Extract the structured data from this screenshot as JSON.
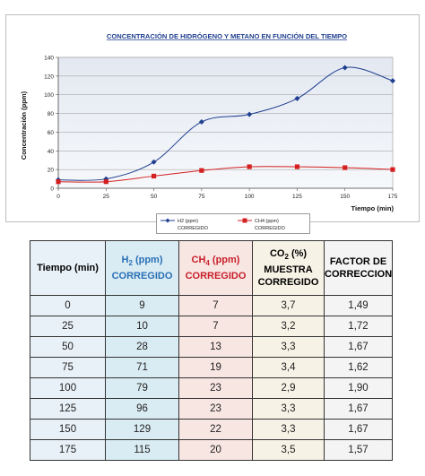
{
  "chart_data": {
    "type": "line",
    "title": "CONCENTRACIÓN DE HIDRÓGENO Y METANO EN FUNCIÓN DEL TIEMPO",
    "xlabel": "Tiempo (min)",
    "ylabel": "Concentración (ppm)",
    "x": [
      0,
      25,
      50,
      75,
      100,
      125,
      150,
      175
    ],
    "xlim": [
      0,
      175
    ],
    "ylim": [
      0,
      140
    ],
    "xticks": [
      "0",
      "25",
      "50",
      "75",
      "100",
      "125",
      "150",
      "175"
    ],
    "yticks": [
      "0",
      "20",
      "40",
      "60",
      "80",
      "100",
      "120",
      "140"
    ],
    "grid": true,
    "series": [
      {
        "name_line1": "H2 (ppm)",
        "name_line2": "CORREGIDO",
        "color": "#1f3f8f",
        "marker": "diamond",
        "values": [
          9,
          10,
          28,
          71,
          79,
          96,
          129,
          115
        ]
      },
      {
        "name_line1": "CH4 (ppm)",
        "name_line2": "CORREGIDO",
        "color": "#d42020",
        "marker": "square",
        "values": [
          7,
          7,
          13,
          19,
          23,
          23,
          22,
          20
        ]
      }
    ]
  },
  "table": {
    "headers": {
      "tiempo": "Tiempo (min)",
      "h2_sym": "H",
      "h2_sub": "2",
      "h2_unit": " (ppm)",
      "h2_corr": "CORREGIDO",
      "ch4_sym": "CH",
      "ch4_sub": "4",
      "ch4_unit": " (ppm)",
      "ch4_corr": "CORREGIDO",
      "co2_sym": "CO",
      "co2_sub": "2",
      "co2_unit": " (%)",
      "co2_line2": "MUESTRA",
      "co2_line3": "CORREGIDO",
      "factor_line1": "FACTOR DE",
      "factor_line2": "CORRECCION"
    },
    "rows": [
      [
        "0",
        "9",
        "7",
        "3,7",
        "1,49"
      ],
      [
        "25",
        "10",
        "7",
        "3,2",
        "1,72"
      ],
      [
        "50",
        "28",
        "13",
        "3,3",
        "1,67"
      ],
      [
        "75",
        "71",
        "19",
        "3,4",
        "1,62"
      ],
      [
        "100",
        "79",
        "23",
        "2,9",
        "1,90"
      ],
      [
        "125",
        "96",
        "23",
        "3,3",
        "1,67"
      ],
      [
        "150",
        "129",
        "22",
        "3,3",
        "1,67"
      ],
      [
        "175",
        "115",
        "20",
        "3,5",
        "1,57"
      ]
    ]
  }
}
